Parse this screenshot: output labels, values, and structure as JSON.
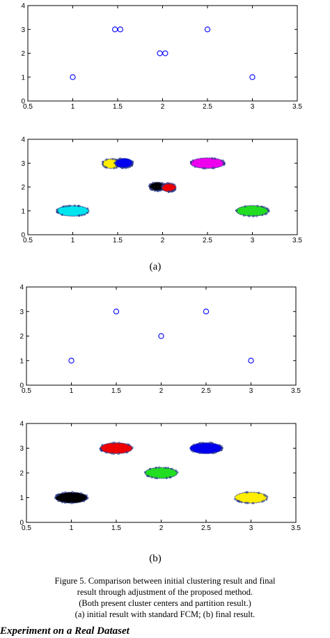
{
  "chart_data": [
    {
      "type": "scatter",
      "panel": "a-centers",
      "xlim": [
        0.5,
        3.5
      ],
      "ylim": [
        0,
        4
      ],
      "xticks": [
        "0.5",
        "1",
        "1.5",
        "2",
        "2.5",
        "3",
        "3.5"
      ],
      "yticks": [
        "0",
        "1",
        "2",
        "3",
        "4"
      ],
      "marker": "open-circle",
      "color": "#0000ff",
      "points": [
        {
          "x": 1.0,
          "y": 1.0
        },
        {
          "x": 1.47,
          "y": 3.0
        },
        {
          "x": 1.53,
          "y": 3.0
        },
        {
          "x": 1.97,
          "y": 2.0
        },
        {
          "x": 2.03,
          "y": 2.0
        },
        {
          "x": 2.5,
          "y": 3.0
        },
        {
          "x": 3.0,
          "y": 1.0
        }
      ]
    },
    {
      "type": "scatter",
      "panel": "a-partition",
      "xlim": [
        0.5,
        3.5
      ],
      "ylim": [
        0,
        4
      ],
      "xticks": [
        "0.5",
        "1",
        "1.5",
        "2",
        "2.5",
        "3",
        "3.5"
      ],
      "yticks": [
        "0",
        "1",
        "2",
        "3",
        "4"
      ],
      "clusters": [
        {
          "color": "#00e5ee",
          "cx": 1.0,
          "cy": 1.0,
          "rx": 0.18,
          "ry": 0.22
        },
        {
          "color": "#ffee00",
          "cx": 1.43,
          "cy": 2.98,
          "rx": 0.1,
          "ry": 0.2
        },
        {
          "color": "#0000ee",
          "cx": 1.57,
          "cy": 3.0,
          "rx": 0.1,
          "ry": 0.2
        },
        {
          "color": "#000000",
          "cx": 1.94,
          "cy": 2.02,
          "rx": 0.09,
          "ry": 0.18
        },
        {
          "color": "#ee0000",
          "cx": 2.07,
          "cy": 1.98,
          "rx": 0.08,
          "ry": 0.18
        },
        {
          "color": "#ee00ee",
          "cx": 2.5,
          "cy": 3.0,
          "rx": 0.19,
          "ry": 0.22
        },
        {
          "color": "#22dd22",
          "cx": 3.0,
          "cy": 1.0,
          "rx": 0.18,
          "ry": 0.22
        }
      ]
    },
    {
      "type": "scatter",
      "panel": "b-centers",
      "xlim": [
        0.5,
        3.5
      ],
      "ylim": [
        0,
        4
      ],
      "xticks": [
        "0.5",
        "1",
        "1.5",
        "2",
        "2.5",
        "3",
        "3.5"
      ],
      "yticks": [
        "0",
        "1",
        "2",
        "3",
        "4"
      ],
      "marker": "open-circle",
      "color": "#0000ff",
      "points": [
        {
          "x": 1.0,
          "y": 1.0
        },
        {
          "x": 1.5,
          "y": 3.0
        },
        {
          "x": 2.0,
          "y": 2.0
        },
        {
          "x": 2.5,
          "y": 3.0
        },
        {
          "x": 3.0,
          "y": 1.0
        }
      ]
    },
    {
      "type": "scatter",
      "panel": "b-partition",
      "xlim": [
        0.5,
        3.5
      ],
      "ylim": [
        0,
        4
      ],
      "xticks": [
        "0.5",
        "1",
        "1.5",
        "2",
        "2.5",
        "3",
        "3.5"
      ],
      "yticks": [
        "0",
        "1",
        "2",
        "3",
        "4"
      ],
      "clusters": [
        {
          "color": "#000000",
          "cx": 1.0,
          "cy": 1.0,
          "rx": 0.18,
          "ry": 0.22
        },
        {
          "color": "#ee0000",
          "cx": 1.5,
          "cy": 3.0,
          "rx": 0.18,
          "ry": 0.22
        },
        {
          "color": "#22dd22",
          "cx": 2.0,
          "cy": 2.0,
          "rx": 0.18,
          "ry": 0.22
        },
        {
          "color": "#0000ee",
          "cx": 2.5,
          "cy": 3.0,
          "rx": 0.18,
          "ry": 0.22
        },
        {
          "color": "#ffee00",
          "cx": 3.0,
          "cy": 1.0,
          "rx": 0.18,
          "ry": 0.22
        }
      ]
    }
  ],
  "labels": {
    "a": "(a)",
    "b": "(b)"
  },
  "caption": {
    "line1": "Figure 5. Comparison between initial clustering result and final",
    "line2": "result through adjustment of the proposed method.",
    "line3": "(Both present cluster centers and partition result.)",
    "line4": "(a) initial result with standard FCM; (b) final result."
  },
  "next_section": "Experiment on a Real Dataset"
}
